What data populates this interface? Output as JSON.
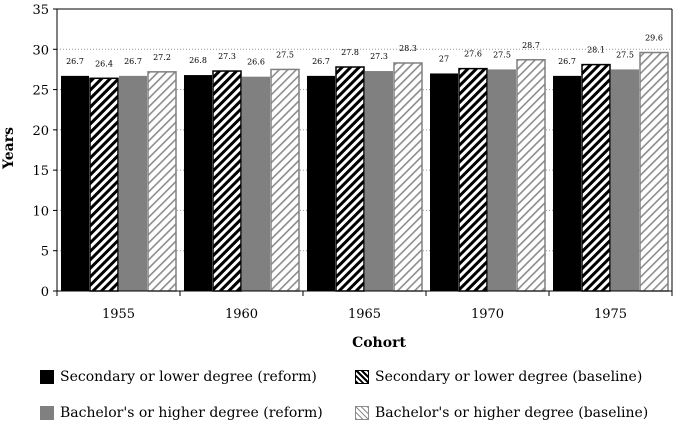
{
  "chart_data": {
    "type": "bar",
    "xlabel": "Cohort",
    "ylabel": "Years",
    "ylim": [
      0,
      35
    ],
    "yticks": [
      "0",
      "5",
      "10",
      "15",
      "20",
      "25",
      "30",
      "35"
    ],
    "grid": "horizontal dotted",
    "legend_position": "bottom",
    "categories": [
      "1955",
      "1960",
      "1965",
      "1970",
      "1975"
    ],
    "series": [
      {
        "name": "Secondary or lower degree (reform)",
        "values": [
          26.7,
          26.8,
          26.7,
          27,
          26.7
        ],
        "labels": [
          "26.7",
          "26.8",
          "26.7",
          "27",
          "26.7"
        ],
        "fill": "solid",
        "color": "#000000"
      },
      {
        "name": "Secondary or lower degree (baseline)",
        "values": [
          26.4,
          27.3,
          27.8,
          27.6,
          28.1
        ],
        "labels": [
          "26.4",
          "27.3",
          "27.8",
          "27.6",
          "28.1"
        ],
        "fill": "hatch-dark",
        "color": "#000000"
      },
      {
        "name": "Bachelor's or higher degree (reform)",
        "values": [
          26.7,
          26.6,
          27.3,
          27.5,
          27.5
        ],
        "labels": [
          "26.7",
          "26.6",
          "27.3",
          "27.5",
          "27.5"
        ],
        "fill": "solid",
        "color": "#808080"
      },
      {
        "name": "Bachelor's or higher degree (baseline)",
        "values": [
          27.2,
          27.5,
          28.3,
          28.7,
          29.6
        ],
        "labels": [
          "27.2",
          "27.5",
          "28.3",
          "28.7",
          "29.6"
        ],
        "fill": "hatch-light",
        "color": "#808080"
      }
    ]
  }
}
